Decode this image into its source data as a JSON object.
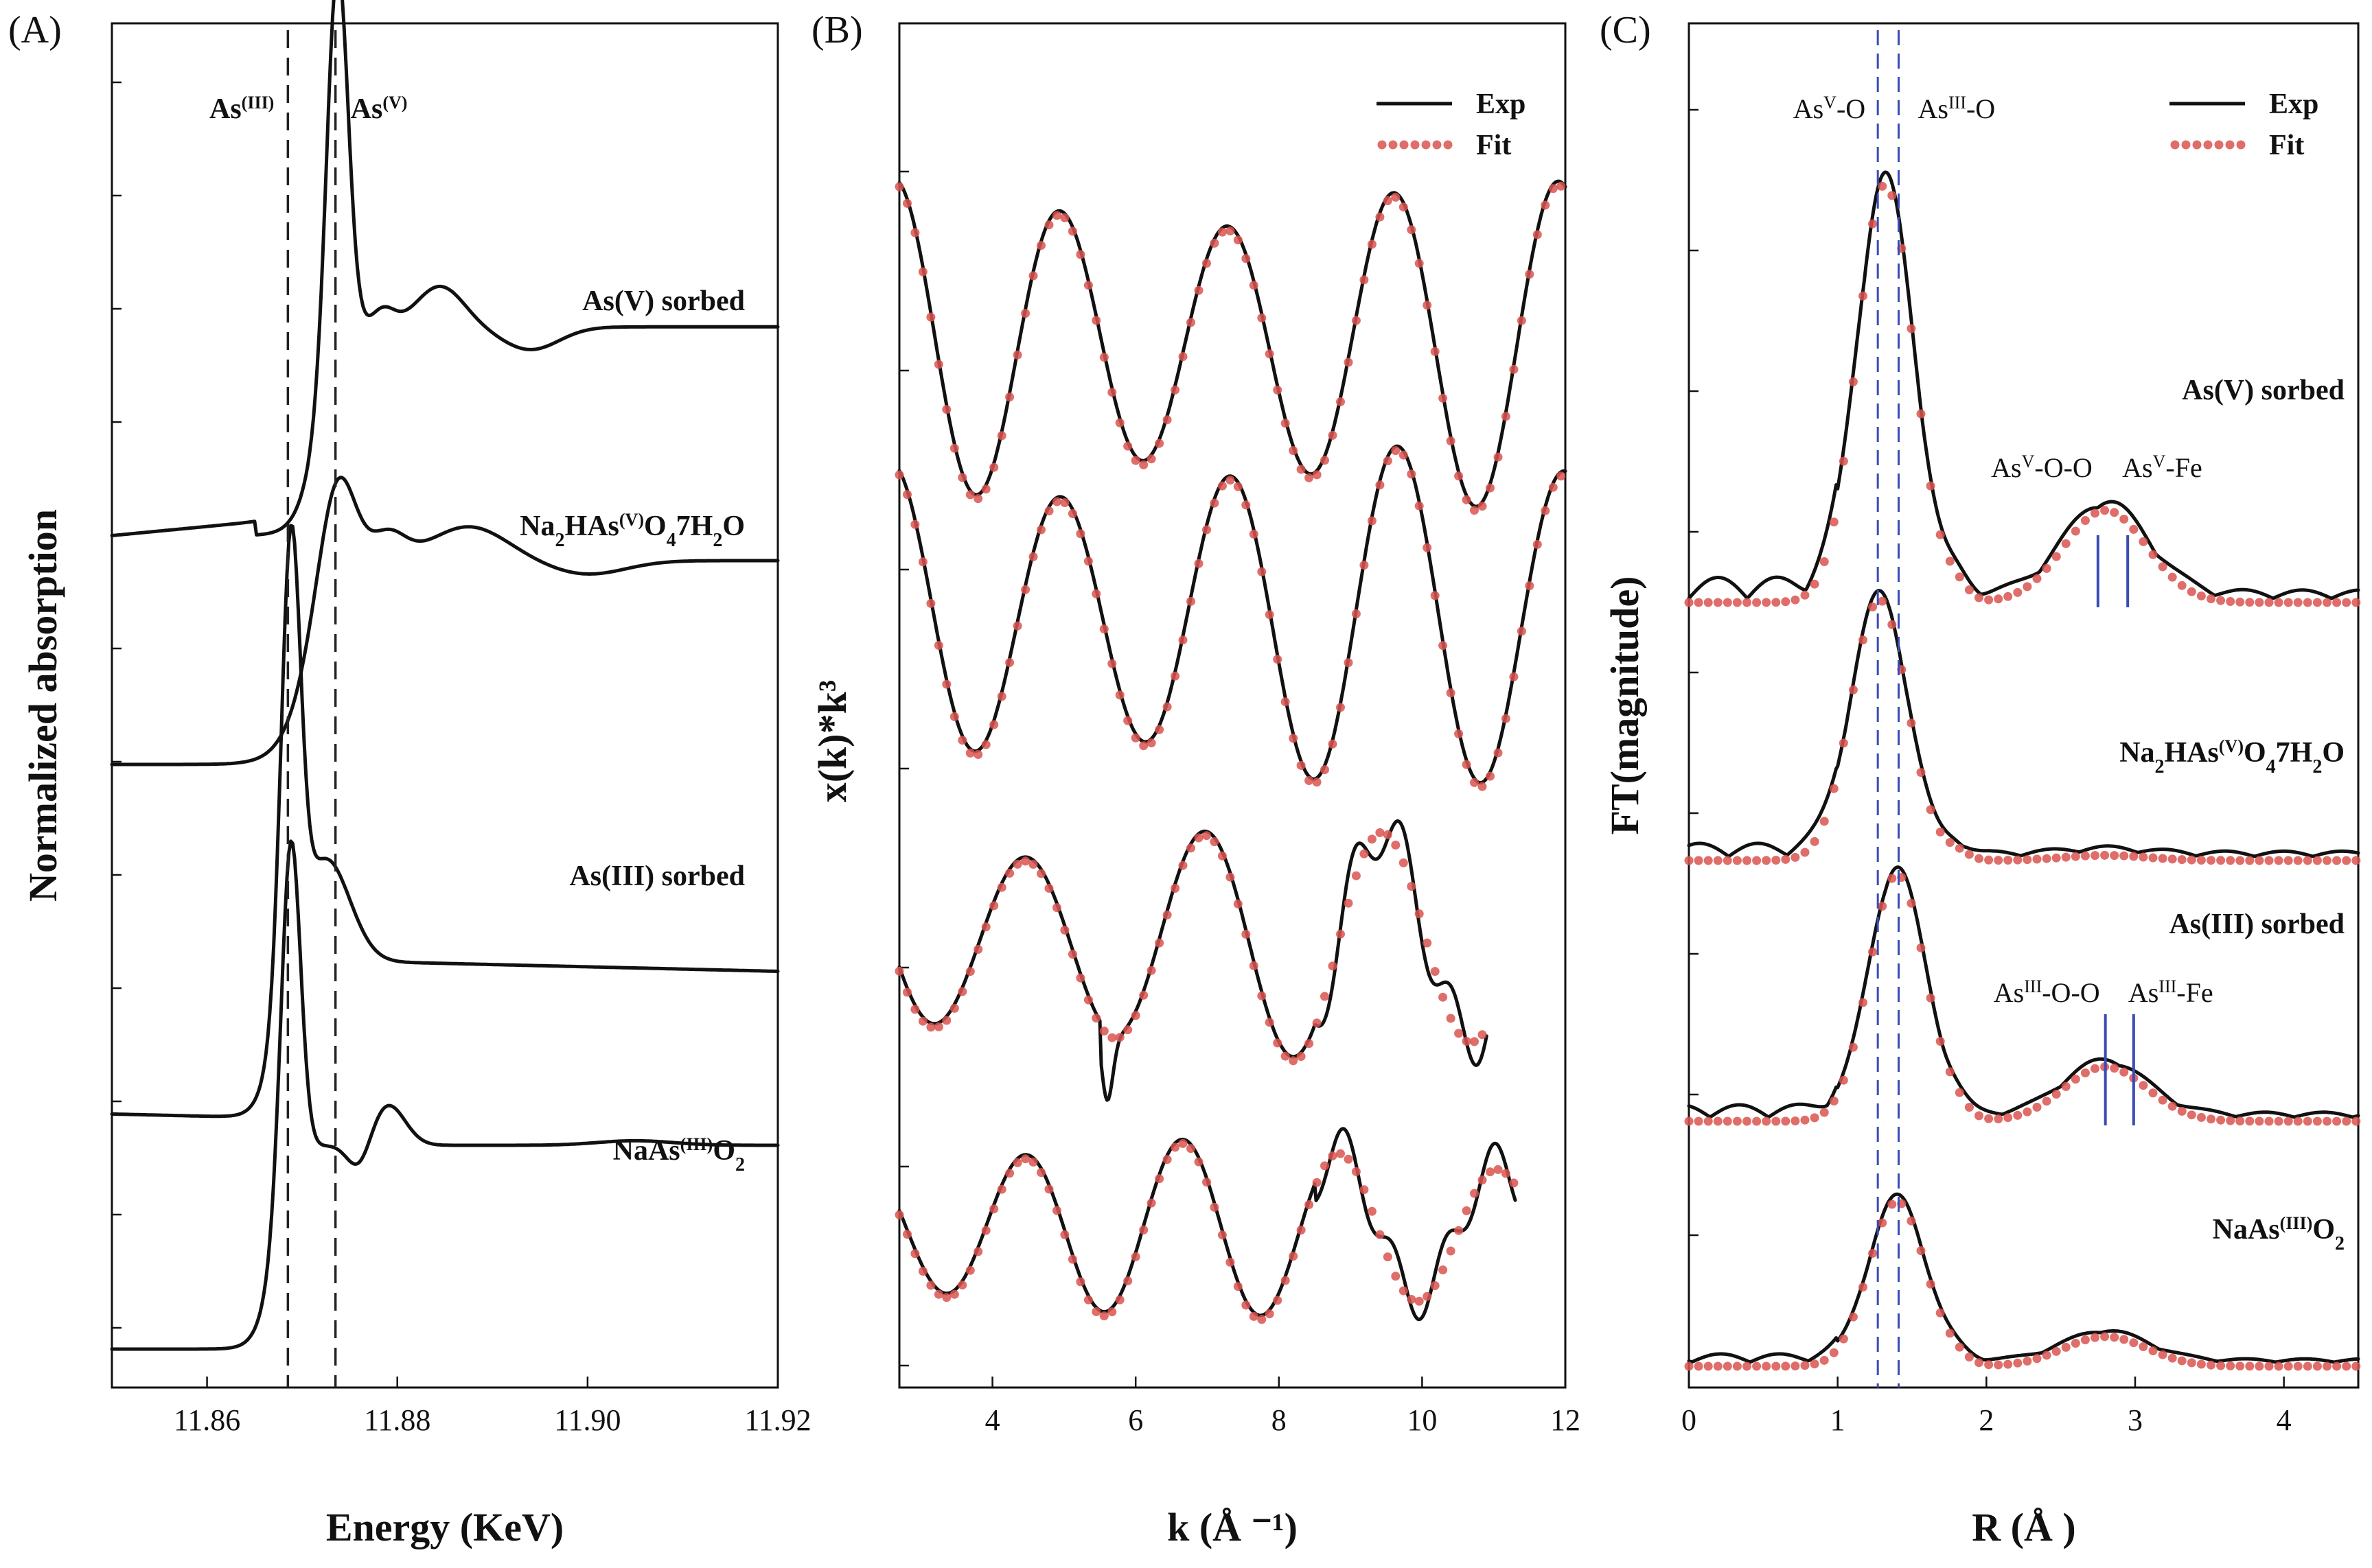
{
  "colors": {
    "exp": "#111111",
    "fit": "#d9534f",
    "marker": "#3b4bb5"
  },
  "chart_data": [
    {
      "panel": "(A)",
      "type": "line",
      "xlabel": "Energy (KeV)",
      "ylabel": "Normalized absorption",
      "xlim": [
        11.85,
        11.92
      ],
      "xticks": [
        "11.86",
        "11.88",
        "11.90",
        "11.92"
      ],
      "xtick_values": [
        11.86,
        11.88,
        11.9,
        11.92
      ],
      "reference_lines": [
        {
          "label_base": "As",
          "label_sup": "(III)",
          "x": 11.8685
        },
        {
          "label_base": "As",
          "label_sup": "(V)",
          "x": 11.8735
        }
      ],
      "series": [
        {
          "name": "As(V) sorbed",
          "label_parts": [
            [
              "As(V) sorbed",
              ""
            ]
          ],
          "baseline": 3
        },
        {
          "name": "Na2HAs(V)O47H2O",
          "label_parts": [
            [
              "Na",
              ""
            ],
            [
              "2",
              "sub"
            ],
            [
              "HAs",
              ""
            ],
            [
              "(V)",
              "sup"
            ],
            [
              "O",
              ""
            ],
            [
              "4",
              "sub"
            ],
            [
              "7H",
              ""
            ],
            [
              "2",
              "sub"
            ],
            [
              "O",
              ""
            ]
          ],
          "baseline": 2
        },
        {
          "name": "As(III) sorbed",
          "label_parts": [
            [
              "As(III) sorbed",
              ""
            ]
          ],
          "baseline": 1
        },
        {
          "name": "NaAs(III)O2",
          "label_parts": [
            [
              "NaAs",
              ""
            ],
            [
              "(III)",
              "sup"
            ],
            [
              "O",
              ""
            ],
            [
              "2",
              "sub"
            ]
          ],
          "baseline": 0
        }
      ]
    },
    {
      "panel": "(B)",
      "type": "line",
      "xlabel": "k (Å ⁻¹)",
      "ylabel": "x(k)*k³",
      "xlim": [
        2.7,
        12
      ],
      "xticks": [
        "4",
        "6",
        "8",
        "10",
        "12"
      ],
      "xtick_values": [
        4,
        6,
        8,
        10,
        12
      ],
      "legend": {
        "entries": [
          "Exp",
          "Fit"
        ],
        "position": "top-right"
      },
      "series": [
        {
          "name": "As(V) sorbed",
          "kmax": 12
        },
        {
          "name": "Na2HAs(V)O47H2O",
          "kmax": 12
        },
        {
          "name": "As(III) sorbed",
          "kmax": 10.9
        },
        {
          "name": "NaAs(III)O2",
          "kmax": 11.3
        }
      ]
    },
    {
      "panel": "(C)",
      "type": "line",
      "xlabel": "R (Å )",
      "ylabel": "FT(magnitude)",
      "xlim": [
        0,
        4.5
      ],
      "xticks": [
        "0",
        "1",
        "2",
        "3",
        "4"
      ],
      "xtick_values": [
        0,
        1,
        2,
        3,
        4
      ],
      "legend": {
        "entries": [
          "Exp",
          "Fit"
        ],
        "position": "top-right"
      },
      "reference_lines": [
        {
          "label_base": "As",
          "label_sup": "V",
          "label_rest": "-O",
          "x": 1.27
        },
        {
          "label_base": "As",
          "label_sup": "III",
          "label_rest": "-O",
          "x": 1.41
        }
      ],
      "shell_markers": [
        {
          "series": "As(V) sorbed",
          "labels": [
            [
              "As",
              "V",
              "-O-O"
            ],
            [
              "As",
              "V",
              "-Fe"
            ]
          ],
          "x": [
            2.75,
            2.95
          ]
        },
        {
          "series": "As(III) sorbed",
          "labels": [
            [
              "As",
              "III",
              "-O-O"
            ],
            [
              "As",
              "III",
              "-Fe"
            ]
          ],
          "x": [
            2.8,
            2.99
          ]
        }
      ],
      "series": [
        {
          "name": "As(V) sorbed",
          "peak_R": 1.32
        },
        {
          "name": "Na2HAs(V)O47H2O",
          "peak_R": 1.28
        },
        {
          "name": "As(III) sorbed",
          "peak_R": 1.4
        },
        {
          "name": "NaAs(III)O2",
          "peak_R": 1.4
        }
      ]
    }
  ]
}
